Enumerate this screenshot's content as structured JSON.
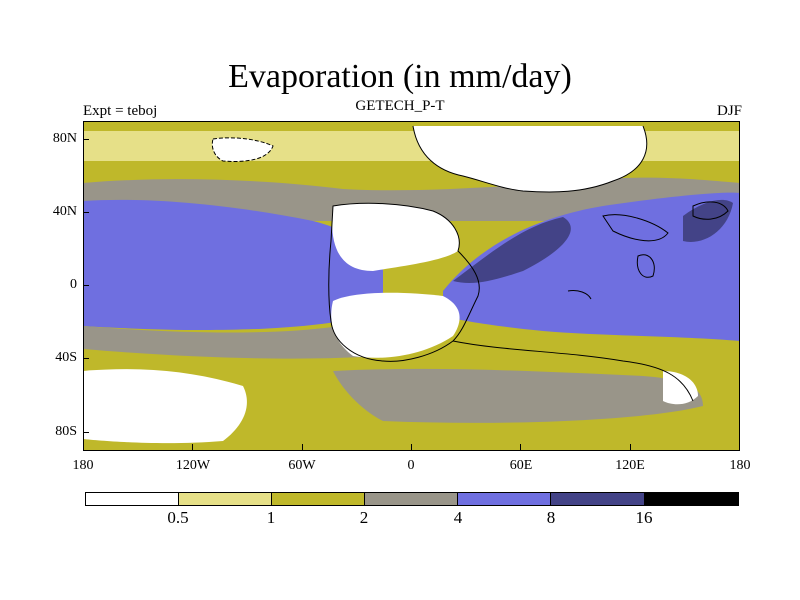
{
  "title": "Evaporation (in mm/day)",
  "left_label": "Expt = teboj",
  "center_label": "GETECH_P-T",
  "right_label": "DJF",
  "y_axis": [
    "80N",
    "40N",
    "0",
    "40S",
    "80S"
  ],
  "x_axis": [
    "180",
    "120W",
    "60W",
    "0",
    "60E",
    "120E",
    "180"
  ],
  "colorbar": {
    "levels": [
      "0.5",
      "1",
      "2",
      "4",
      "8",
      "16"
    ],
    "colors": [
      "#ffffff",
      "#e6e088",
      "#bfb82a",
      "#999589",
      "#6f6fe0",
      "#434387",
      "#000000"
    ]
  },
  "colors": {
    "white": "#ffffff",
    "pale": "#e6e088",
    "olive": "#bfb82a",
    "gray": "#999589",
    "blue": "#6f6fe0",
    "navy": "#434387",
    "coast": "#000000"
  }
}
